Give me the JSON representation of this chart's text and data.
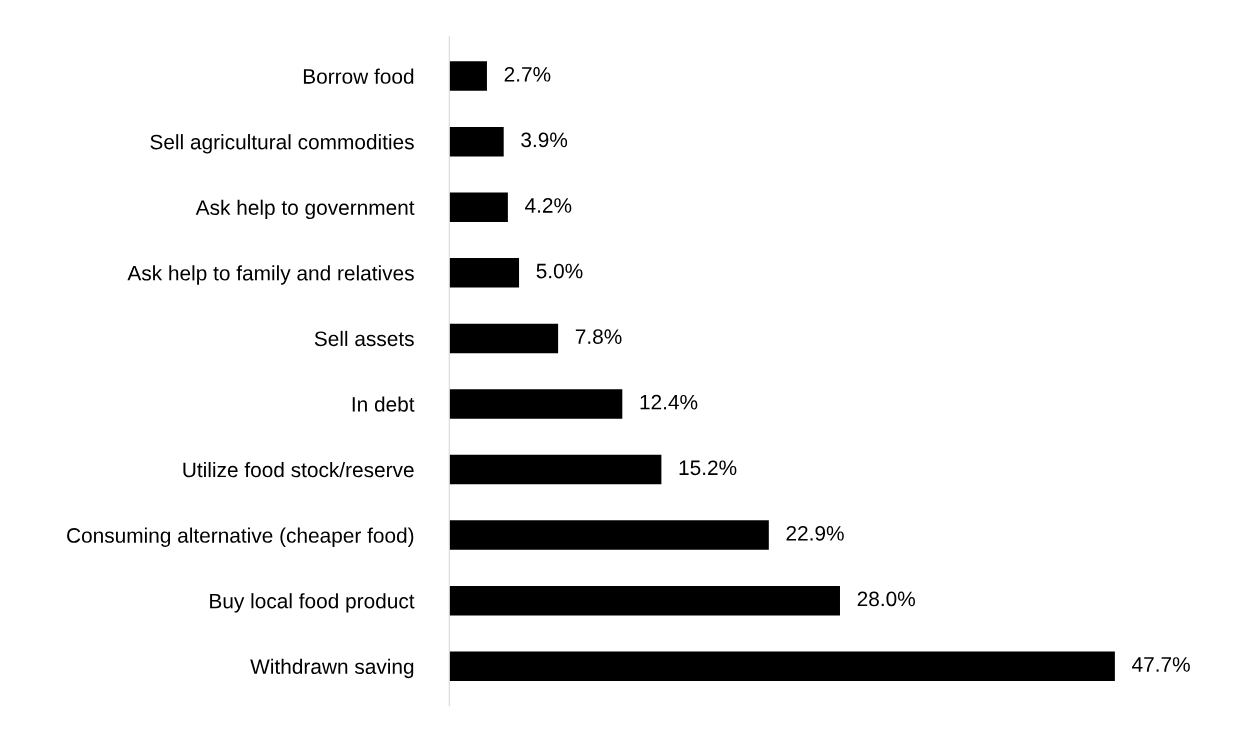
{
  "chart_data": {
    "type": "bar",
    "orientation": "horizontal",
    "categories": [
      "Borrow food",
      "Sell agricultural commodities",
      "Ask help to government",
      "Ask help to family and relatives",
      "Sell assets",
      "In debt",
      "Utilize food stock/reserve",
      "Consuming alternative (cheaper food)",
      "Buy local food product",
      "Withdrawn saving"
    ],
    "values": [
      2.7,
      3.9,
      4.2,
      5.0,
      7.8,
      12.4,
      15.2,
      22.9,
      28.0,
      47.7
    ],
    "value_labels": [
      "2.7%",
      "3.9%",
      "4.2%",
      "5.0%",
      "7.8%",
      "12.4%",
      "15.2%",
      "22.9%",
      "28.0%",
      "47.7%"
    ],
    "color": "#000000",
    "grid": false,
    "legend": false
  }
}
